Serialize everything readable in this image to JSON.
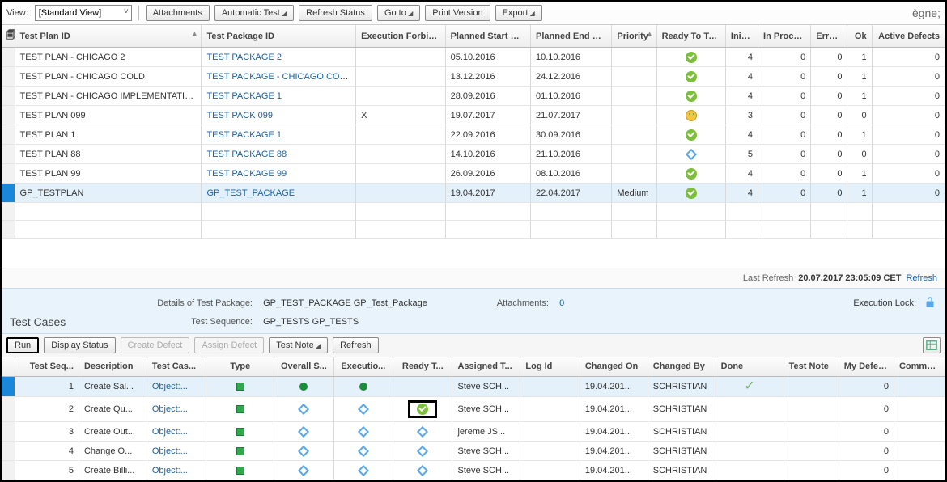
{
  "theme": {
    "link_color": "#1862a8",
    "selected_row_bg": "#e4f1fb",
    "selected_handle_bg": "#1b87d8",
    "header_bg": "#eee",
    "details_bg": "#e8f3fb"
  },
  "top_toolbar": {
    "view_label": "View:",
    "view_selected": "[Standard View]",
    "buttons": {
      "attachments": "Attachments",
      "automatic_test": "Automatic Test",
      "refresh_status": "Refresh Status",
      "go_to": "Go to",
      "print_version": "Print Version",
      "export": "Export"
    }
  },
  "upper_table": {
    "columns": {
      "test_plan_id": "Test Plan ID",
      "test_package_id": "Test Package ID",
      "execution_forbidden": "Execution Forbidden",
      "planned_start_date": "Planned Start Date",
      "planned_end_date": "Planned End Date",
      "priority": "Priority",
      "ready_to_test": "Ready To Test",
      "initial": "Initial",
      "in_process": "In Process",
      "errors": "Errors",
      "ok": "Ok",
      "active_defects": "Active Defects"
    },
    "col_widths": {
      "handle": 16,
      "test_plan_id": 230,
      "test_package_id": 190,
      "execution_forbidden": 110,
      "planned_start_date": 105,
      "planned_end_date": 100,
      "priority": 55,
      "ready_to_test": 85,
      "initial": 40,
      "in_process": 65,
      "errors": 45,
      "ok": 30,
      "active_defects": 90
    },
    "rows": [
      {
        "plan": "TEST PLAN - CHICAGO 2",
        "pkg": "TEST PACKAGE 2",
        "exf": "",
        "start": "05.10.2016",
        "end": "10.10.2016",
        "prio": "",
        "ready": "check",
        "initial": 4,
        "inproc": 0,
        "errors": 0,
        "ok": 1,
        "defects": 0,
        "selected": false
      },
      {
        "plan": "TEST PLAN - CHICAGO COLD",
        "pkg": "TEST PACKAGE - CHICAGO COLD",
        "exf": "",
        "start": "13.12.2016",
        "end": "24.12.2016",
        "prio": "",
        "ready": "check",
        "initial": 4,
        "inproc": 0,
        "errors": 0,
        "ok": 1,
        "defects": 0,
        "selected": false
      },
      {
        "plan": "TEST PLAN - CHICAGO IMPLEMENTATION",
        "pkg": "TEST PACKAGE 1",
        "exf": "",
        "start": "28.09.2016",
        "end": "01.10.2016",
        "prio": "",
        "ready": "check",
        "initial": 4,
        "inproc": 0,
        "errors": 0,
        "ok": 1,
        "defects": 0,
        "selected": false
      },
      {
        "plan": "TEST PLAN 099",
        "pkg": "TEST PACK 099",
        "exf": "X",
        "start": "19.07.2017",
        "end": "21.07.2017",
        "prio": "",
        "ready": "face",
        "initial": 3,
        "inproc": 0,
        "errors": 0,
        "ok": 0,
        "defects": 0,
        "selected": false
      },
      {
        "plan": "TEST PLAN 1",
        "pkg": "TEST PACKAGE 1",
        "exf": "",
        "start": "22.09.2016",
        "end": "30.09.2016",
        "prio": "",
        "ready": "check",
        "initial": 4,
        "inproc": 0,
        "errors": 0,
        "ok": 1,
        "defects": 0,
        "selected": false
      },
      {
        "plan": "TEST PLAN 88",
        "pkg": "TEST PACKAGE 88",
        "exf": "",
        "start": "14.10.2016",
        "end": "21.10.2016",
        "prio": "",
        "ready": "diamond",
        "initial": 5,
        "inproc": 0,
        "errors": 0,
        "ok": 0,
        "defects": 0,
        "selected": false
      },
      {
        "plan": "TEST PLAN 99",
        "pkg": "TEST PACKAGE 99",
        "exf": "",
        "start": "26.09.2016",
        "end": "08.10.2016",
        "prio": "",
        "ready": "check",
        "initial": 4,
        "inproc": 0,
        "errors": 0,
        "ok": 1,
        "defects": 0,
        "selected": false
      },
      {
        "plan": "GP_TESTPLAN",
        "pkg": "GP_TEST_PACKAGE",
        "exf": "",
        "start": "19.04.2017",
        "end": "22.04.2017",
        "prio": "Medium",
        "ready": "check",
        "initial": 4,
        "inproc": 0,
        "errors": 0,
        "ok": 1,
        "defects": 0,
        "selected": true
      }
    ],
    "empty_rows": 2
  },
  "refresh_line": {
    "label": "Last Refresh",
    "timestamp": "20.07.2017 23:05:09 CET",
    "refresh_link": "Refresh"
  },
  "details": {
    "section_title": "Test Cases",
    "labels": {
      "details_of": "Details of Test Package:",
      "test_sequence": "Test Sequence:",
      "attachments": "Attachments:",
      "execution_lock": "Execution Lock:"
    },
    "values": {
      "package": "GP_TEST_PACKAGE GP_Test_Package",
      "sequence": "GP_TESTS GP_TESTS",
      "attachments_count": "0"
    }
  },
  "lower_toolbar": {
    "run": "Run",
    "display_status": "Display Status",
    "create_defect": "Create Defect",
    "assign_defect": "Assign Defect",
    "test_note": "Test Note",
    "refresh": "Refresh"
  },
  "lower_table": {
    "columns": {
      "seq": "Test Seq...",
      "desc": "Description",
      "case": "Test Cas...",
      "type": "Type",
      "overall": "Overall S...",
      "exec": "Executio...",
      "ready": "Ready T...",
      "assigned": "Assigned T...",
      "logid": "Log Id",
      "changed_on": "Changed On",
      "changed_by": "Changed By",
      "done": "Done",
      "test_note": "Test Note",
      "my_defects": "My Defects",
      "comment": "Comment"
    },
    "col_widths": {
      "handle": 16,
      "seq": 75,
      "desc": 80,
      "case": 70,
      "type": 80,
      "overall": 70,
      "exec": 70,
      "ready": 70,
      "assigned": 80,
      "logid": 70,
      "changed_on": 80,
      "changed_by": 80,
      "done": 80,
      "test_note": 65,
      "my_defects": 65,
      "comment": 60
    },
    "rows": [
      {
        "seq": 1,
        "desc": "Create Sal...",
        "case": "Object:...",
        "type": "sq",
        "overall": "dot",
        "exec": "dot",
        "ready": "",
        "ready_highlight": false,
        "assigned": "Steve SCH...",
        "logid": "",
        "changed_on": "19.04.201...",
        "changed_by": "SCHRISTIAN",
        "done": "check",
        "defects": 0,
        "selected": true
      },
      {
        "seq": 2,
        "desc": "Create Qu...",
        "case": "Object:...",
        "type": "sq",
        "overall": "diamond",
        "exec": "diamond",
        "ready": "check",
        "ready_highlight": true,
        "assigned": "Steve SCH...",
        "logid": "",
        "changed_on": "19.04.201...",
        "changed_by": "SCHRISTIAN",
        "done": "",
        "defects": 0,
        "selected": false
      },
      {
        "seq": 3,
        "desc": "Create Out...",
        "case": "Object:...",
        "type": "sq",
        "overall": "diamond",
        "exec": "diamond",
        "ready": "diamond",
        "ready_highlight": false,
        "assigned": "jereme JS...",
        "logid": "",
        "changed_on": "19.04.201...",
        "changed_by": "SCHRISTIAN",
        "done": "",
        "defects": 0,
        "selected": false
      },
      {
        "seq": 4,
        "desc": "Change O...",
        "case": "Object:...",
        "type": "sq",
        "overall": "diamond",
        "exec": "diamond",
        "ready": "diamond",
        "ready_highlight": false,
        "assigned": "Steve SCH...",
        "logid": "",
        "changed_on": "19.04.201...",
        "changed_by": "SCHRISTIAN",
        "done": "",
        "defects": 0,
        "selected": false
      },
      {
        "seq": 5,
        "desc": "Create Billi...",
        "case": "Object:...",
        "type": "sq",
        "overall": "diamond",
        "exec": "diamond",
        "ready": "diamond",
        "ready_highlight": false,
        "assigned": "Steve SCH...",
        "logid": "",
        "changed_on": "19.04.201...",
        "changed_by": "SCHRISTIAN",
        "done": "",
        "defects": 0,
        "selected": false
      }
    ]
  }
}
